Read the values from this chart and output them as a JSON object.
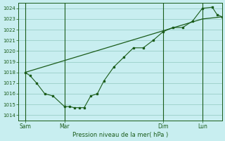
{
  "title": "Pression niveau de la mer( hPa )",
  "bg_color": "#c8eef0",
  "grid_color": "#90c8c0",
  "line_color": "#1a5c1a",
  "ylim": [
    1013.5,
    1024.5
  ],
  "yticks": [
    1014,
    1015,
    1016,
    1017,
    1018,
    1019,
    1020,
    1021,
    1022,
    1023,
    1024
  ],
  "xtick_labels": [
    "Sam",
    "Mar",
    "Dim",
    "Lun"
  ],
  "xtick_positions": [
    0,
    24,
    84,
    108
  ],
  "xlim": [
    -4,
    120
  ],
  "vline_positions": [
    0,
    24,
    84,
    108
  ],
  "jagged_x": [
    0,
    3,
    7,
    12,
    17,
    24,
    27,
    30,
    33,
    36,
    40,
    44,
    48,
    54,
    60,
    66,
    72,
    78,
    84,
    90,
    96,
    102,
    108,
    114,
    117,
    120
  ],
  "jagged_y": [
    1018,
    1017.7,
    1017.0,
    1016.0,
    1015.8,
    1014.8,
    1014.8,
    1014.7,
    1014.7,
    1014.7,
    1015.8,
    1016.0,
    1017.2,
    1018.5,
    1019.4,
    1020.3,
    1020.3,
    1021.0,
    1021.8,
    1022.2,
    1022.2,
    1022.8,
    1024.0,
    1024.1,
    1023.4,
    1023.2
  ],
  "trend_x": [
    0,
    108,
    120
  ],
  "trend_y": [
    1018.0,
    1023.0,
    1023.2
  ],
  "marker_x": [
    0,
    3,
    7,
    12,
    17,
    24,
    27,
    30,
    33,
    36,
    40,
    44,
    48,
    54,
    60,
    66,
    72,
    78,
    84,
    90,
    96,
    102,
    108,
    114,
    117,
    120
  ],
  "marker_y": [
    1018,
    1017.7,
    1017.0,
    1016.0,
    1015.8,
    1014.8,
    1014.8,
    1014.7,
    1014.7,
    1014.7,
    1015.8,
    1016.0,
    1017.2,
    1018.5,
    1019.4,
    1020.3,
    1020.3,
    1021.0,
    1021.8,
    1022.2,
    1022.2,
    1022.8,
    1024.0,
    1024.1,
    1023.4,
    1023.2
  ]
}
